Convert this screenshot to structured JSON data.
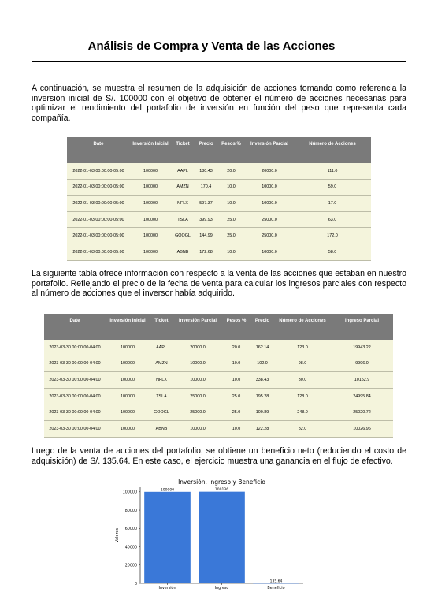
{
  "title": "Análisis de Compra y Venta de las Acciones",
  "paragraphs": {
    "p1": "A continuación, se muestra el resumen de la adquisición de acciones tomando como referencia la inversión inicial de S/. 100000 con el objetivo de obtener el número de acciones necesarias para optimizar el rendimiento del portafolio de inversión en función del peso que representa cada compañía.",
    "p2": "La siguiente tabla ofrece información con respecto a la venta de las acciones que estaban en nuestro portafolio. Reflejando el precio de la fecha de venta para calcular los ingresos parciales con respecto al número de acciones que el inversor había adquirido.",
    "p3": "Luego de la venta de acciones del portafolio, se obtiene un beneficio neto (reduciendo el costo de adquisición) de S/. 135.64. En este caso, el ejercicio muestra una ganancia en el flujo de efectivo."
  },
  "table1": {
    "headers": [
      "Date",
      "Inversión Inicial",
      "Ticket",
      "Precio",
      "Pesos %",
      "Inversión Parcial",
      "Número de Acciones"
    ],
    "rows": [
      [
        "2022-01-03 00:00:00-05:00",
        "100000",
        "AAPL",
        "180.43",
        "20.0",
        "20000.0",
        "111.0"
      ],
      [
        "2022-01-03 00:00:00-05:00",
        "100000",
        "AMZN",
        "170.4",
        "10.0",
        "10000.0",
        "59.0"
      ],
      [
        "2022-01-03 00:00:00-05:00",
        "100000",
        "NFLX",
        "597.37",
        "10.0",
        "10000.0",
        "17.0"
      ],
      [
        "2022-01-03 00:00:00-05:00",
        "100000",
        "TSLA",
        "399.93",
        "25.0",
        "25000.0",
        "63.0"
      ],
      [
        "2022-01-03 00:00:00-05:00",
        "100000",
        "GOOGL",
        "144.99",
        "25.0",
        "25000.0",
        "172.0"
      ],
      [
        "2022-01-03 00:00:00-05:00",
        "100000",
        "ABNB",
        "172.68",
        "10.0",
        "10000.0",
        "58.0"
      ]
    ]
  },
  "table2": {
    "headers": [
      "Date",
      "Inversión Inicial",
      "Ticket",
      "Inversión Parcial",
      "Pesos %",
      "Precio",
      "Número de Acciones",
      "Ingreso Parcial"
    ],
    "rows": [
      [
        "2023-03-30 00:00:00-04:00",
        "100000",
        "AAPL",
        "20000.0",
        "20.0",
        "162.14",
        "123.0",
        "19943.22"
      ],
      [
        "2023-03-30 00:00:00-04:00",
        "100000",
        "AMZN",
        "10000.0",
        "10.0",
        "102.0",
        "98.0",
        "9996.0"
      ],
      [
        "2023-03-30 00:00:00-04:00",
        "100000",
        "NFLX",
        "10000.0",
        "10.0",
        "338.43",
        "30.0",
        "10152.9"
      ],
      [
        "2023-03-30 00:00:00-04:00",
        "100000",
        "TSLA",
        "25000.0",
        "25.0",
        "195.28",
        "128.0",
        "24995.84"
      ],
      [
        "2023-03-30 00:00:00-04:00",
        "100000",
        "GOOGL",
        "25000.0",
        "25.0",
        "100.89",
        "248.0",
        "25020.72"
      ],
      [
        "2023-03-30 00:00:00-04:00",
        "100000",
        "ABNB",
        "10000.0",
        "10.0",
        "122.28",
        "82.0",
        "10026.96"
      ]
    ]
  },
  "chart_data": {
    "type": "bar",
    "title": "Inversión, Ingreso y Beneficio",
    "ylabel": "Valores",
    "xlabel": "",
    "categories": [
      "Inversión",
      "Ingreso",
      "Beneficio"
    ],
    "values": [
      100000,
      100136,
      135.64
    ],
    "value_labels": [
      "100000",
      "100136",
      "135.64"
    ],
    "yticks": [
      0,
      20000,
      40000,
      60000,
      80000,
      100000
    ],
    "ylim": [
      0,
      105000
    ],
    "bar_color": "#3a78d8",
    "grid": false,
    "legend": "none"
  }
}
